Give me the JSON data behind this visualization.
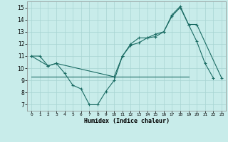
{
  "title": "",
  "xlabel": "Humidex (Indice chaleur)",
  "bg_color": "#c8ecea",
  "grid_color": "#a8d4d2",
  "line_color": "#1a6b63",
  "xlim": [
    -0.5,
    23.5
  ],
  "ylim": [
    6.5,
    15.5
  ],
  "yticks": [
    7,
    8,
    9,
    10,
    11,
    12,
    13,
    14,
    15
  ],
  "xticks": [
    0,
    1,
    2,
    3,
    4,
    5,
    6,
    7,
    8,
    9,
    10,
    11,
    12,
    13,
    14,
    15,
    16,
    17,
    18,
    19,
    20,
    21,
    22,
    23
  ],
  "curve1_x": [
    0,
    1,
    2,
    3,
    4,
    5,
    6,
    7,
    8,
    9,
    10,
    11,
    12,
    13,
    14,
    15,
    16,
    17,
    18,
    19,
    20,
    21,
    22
  ],
  "curve1_y": [
    11.0,
    11.0,
    10.2,
    10.4,
    9.6,
    8.6,
    8.3,
    7.0,
    7.0,
    8.1,
    9.0,
    11.0,
    12.0,
    12.5,
    12.5,
    12.8,
    13.0,
    14.3,
    15.0,
    13.6,
    12.2,
    10.4,
    9.2
  ],
  "curve2_x": [
    0,
    2,
    3,
    10,
    11,
    12,
    13,
    14,
    15,
    16,
    17,
    18,
    19,
    20,
    23
  ],
  "curve2_y": [
    11.0,
    10.2,
    10.4,
    9.3,
    11.0,
    11.9,
    12.1,
    12.5,
    12.6,
    13.0,
    14.4,
    15.1,
    13.6,
    13.6,
    9.2
  ],
  "curve3_x": [
    0,
    19
  ],
  "curve3_y": [
    9.3,
    9.3
  ],
  "figsize": [
    3.2,
    2.0
  ],
  "dpi": 100
}
